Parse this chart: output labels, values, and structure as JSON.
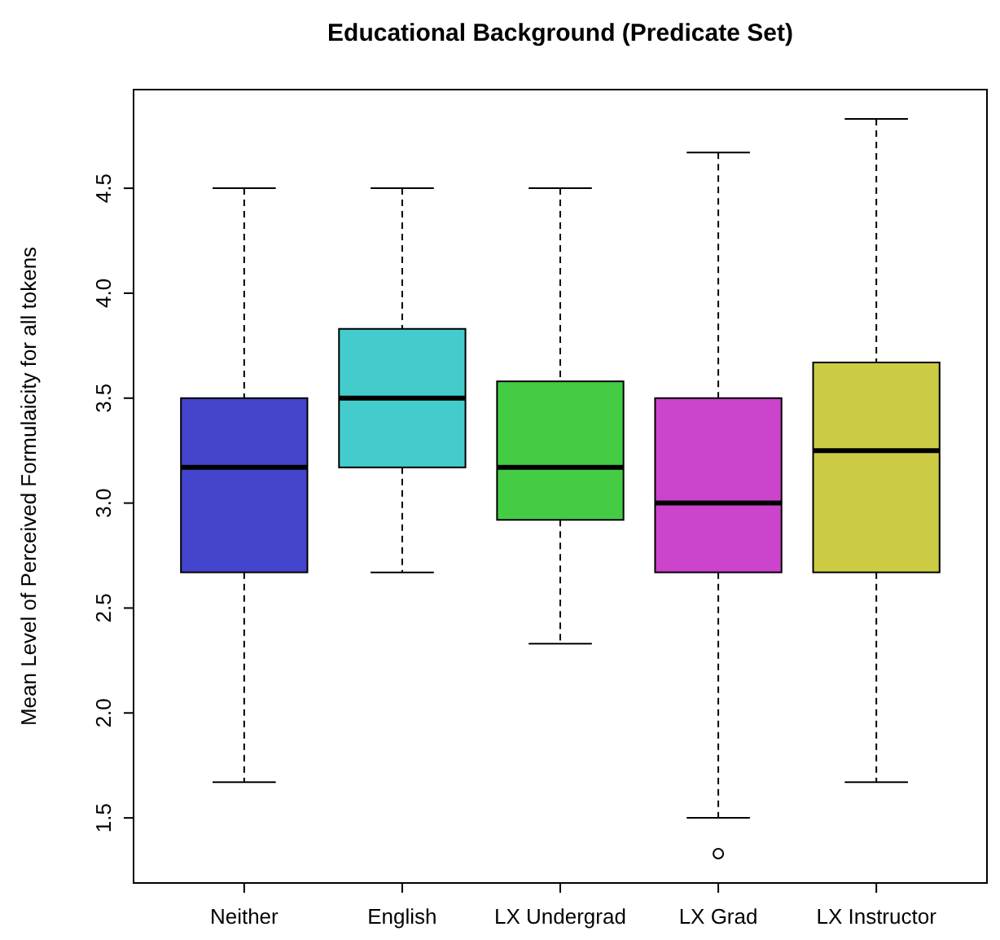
{
  "chart_data": {
    "type": "box",
    "title": "Educational Background (Predicate Set)",
    "ylabel": "Mean Level of Perceived Formulaicity for all tokens",
    "categories": [
      "Neither",
      "English",
      "LX Undergrad",
      "LX Grad",
      "LX Instructor"
    ],
    "colors": [
      "#4444cc",
      "#44cccc",
      "#44cc44",
      "#cc44cc",
      "#cccc44"
    ],
    "boxes": [
      {
        "low": 1.67,
        "q1": 2.67,
        "median": 3.17,
        "q3": 3.5,
        "high": 4.5
      },
      {
        "low": 2.67,
        "q1": 3.17,
        "median": 3.5,
        "q3": 3.83,
        "high": 4.5
      },
      {
        "low": 2.33,
        "q1": 2.92,
        "median": 3.17,
        "q3": 3.58,
        "high": 4.5
      },
      {
        "low": 1.5,
        "q1": 2.67,
        "median": 3.0,
        "q3": 3.5,
        "high": 4.67,
        "outliers": [
          1.33
        ]
      },
      {
        "low": 1.67,
        "q1": 2.67,
        "median": 3.25,
        "q3": 3.67,
        "high": 4.83
      }
    ],
    "ylim": [
      1.19,
      4.97
    ],
    "yticks": [
      1.5,
      {
        "value": 2,
        "label": "2.0"
      },
      2.5,
      {
        "value": 3,
        "label": "3.0"
      },
      3.5,
      {
        "value": 4,
        "label": "4.0"
      },
      4.5
    ]
  }
}
